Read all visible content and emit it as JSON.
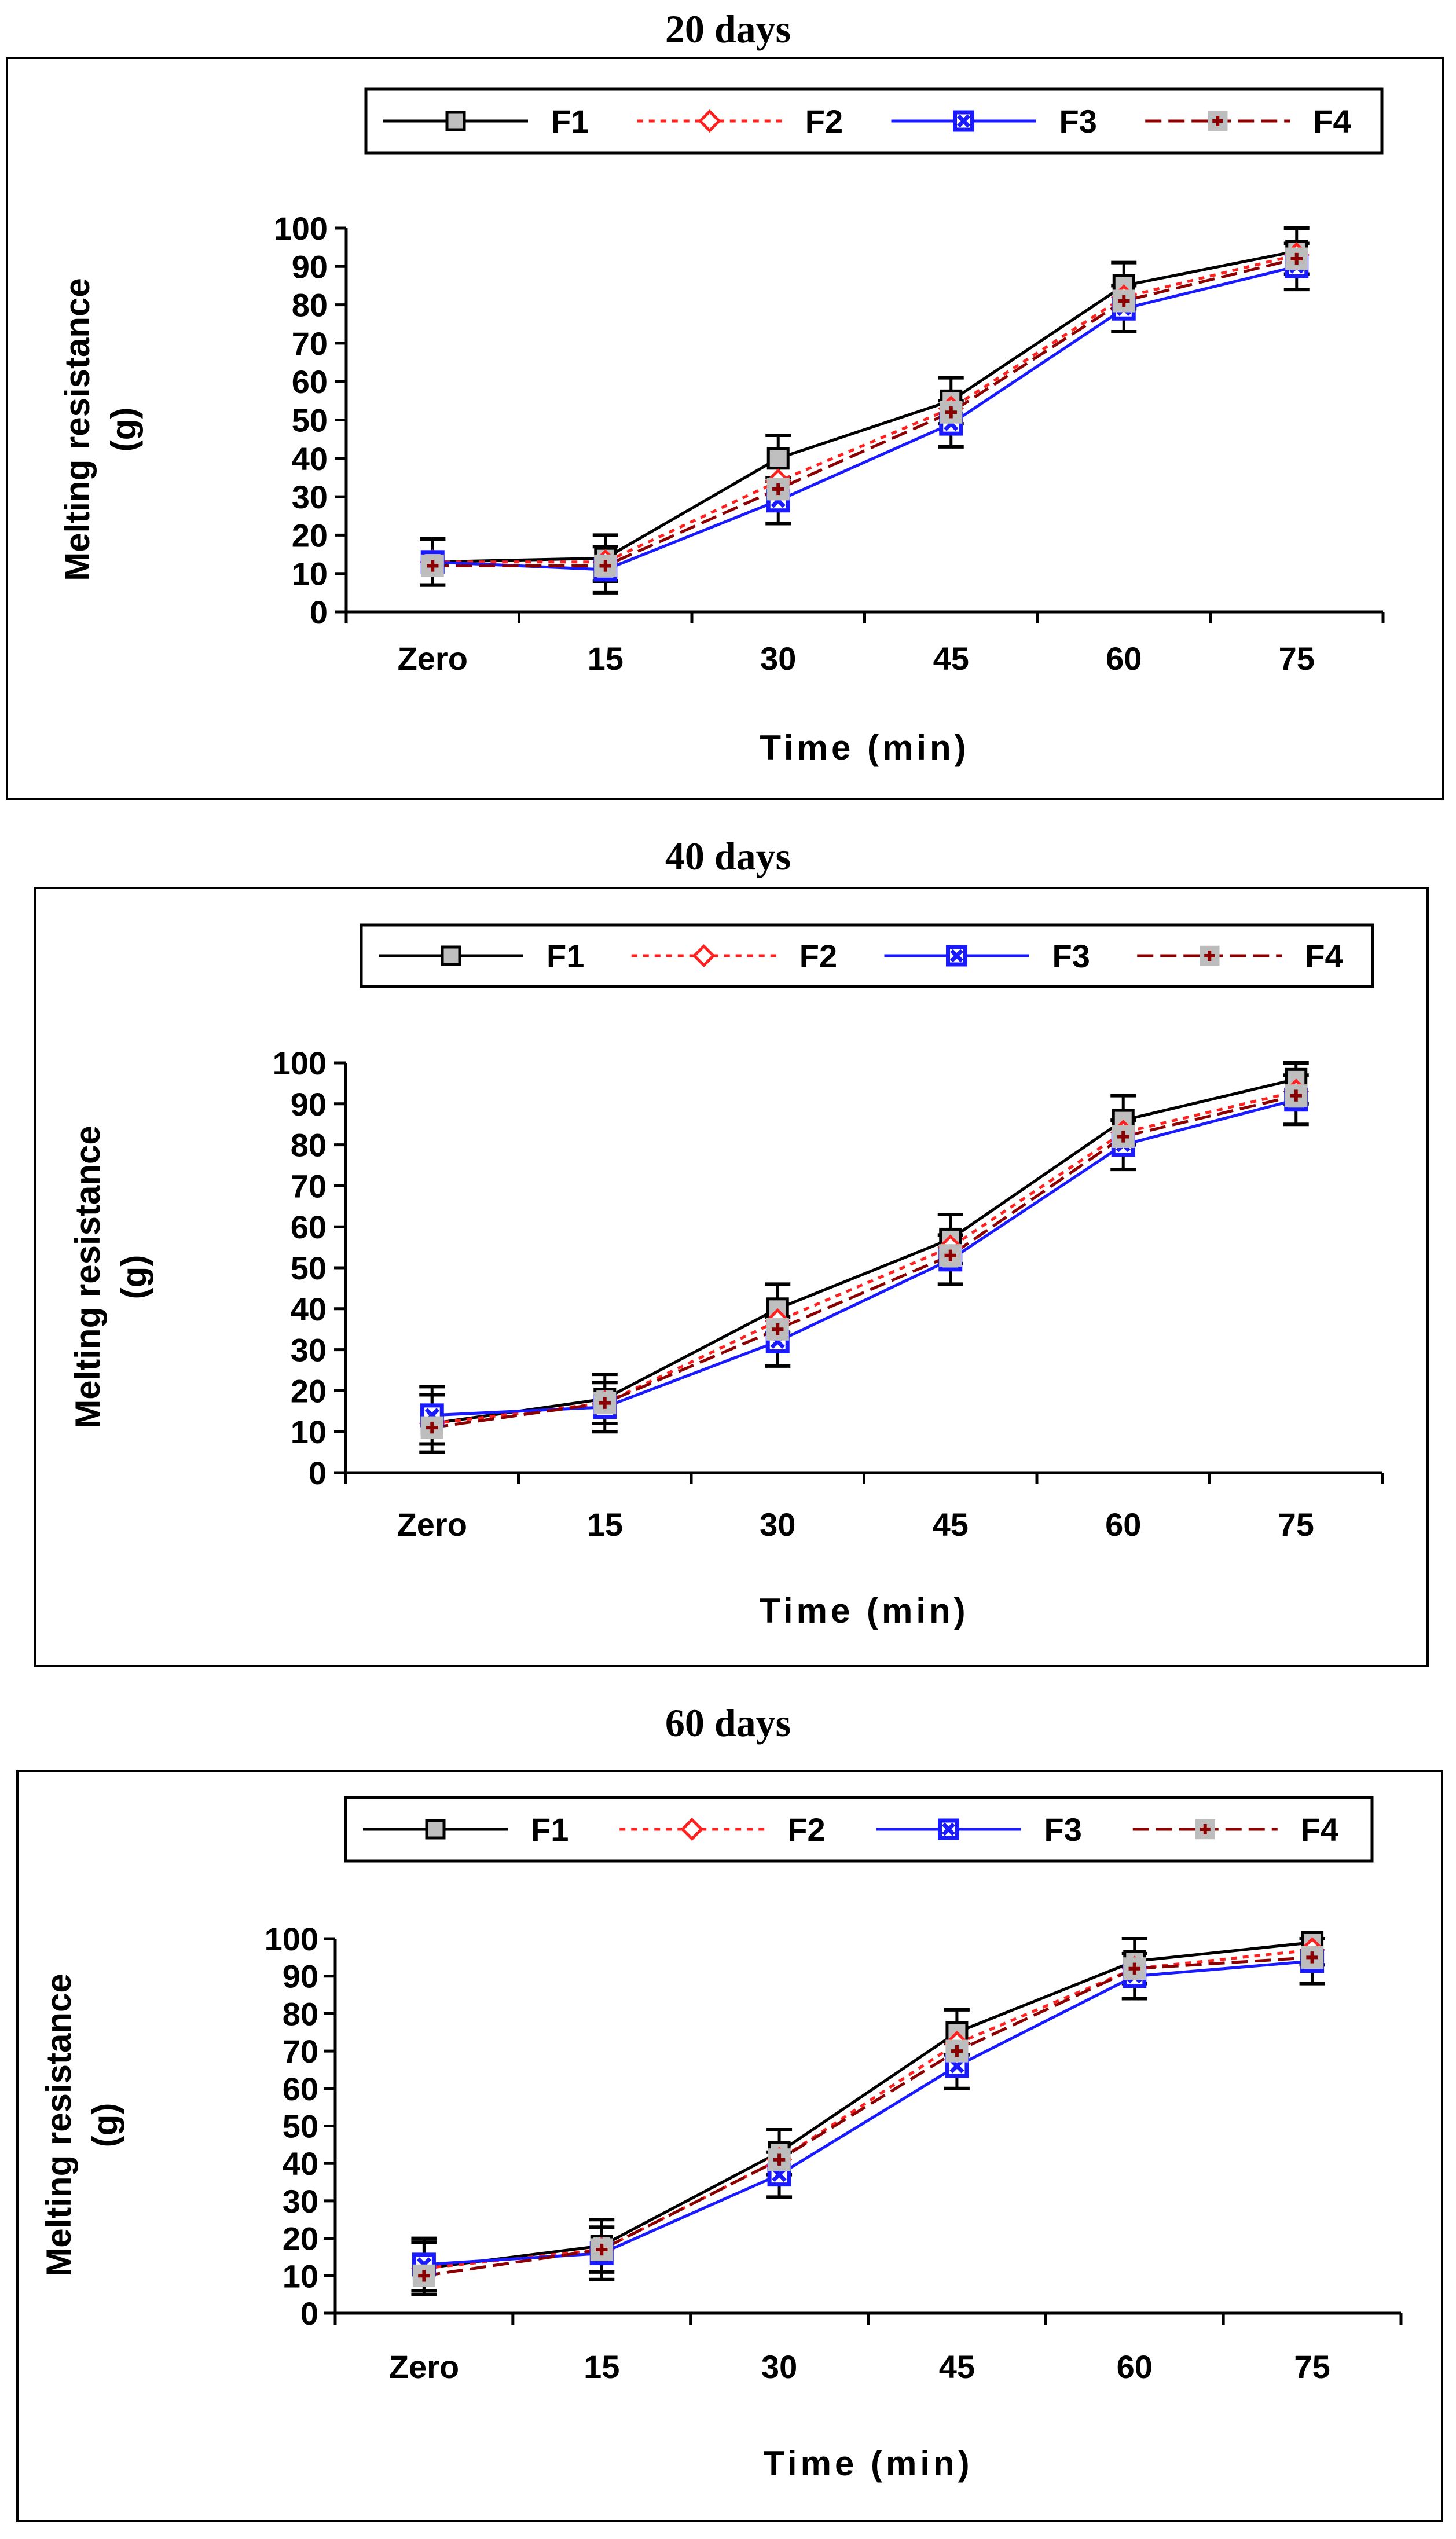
{
  "chart_data": [
    {
      "type": "line",
      "title": "20 days",
      "xlabel": "Time (min)",
      "ylabel_lines": [
        "Melting resistance",
        "(g)"
      ],
      "categories": [
        "Zero",
        "15",
        "30",
        "45",
        "60",
        "75"
      ],
      "ylim": [
        0,
        100
      ],
      "yticks": [
        "0",
        "10",
        "20",
        "30",
        "40",
        "50",
        "60",
        "70",
        "80",
        "90",
        "100"
      ],
      "series": [
        {
          "name": "F1",
          "values": [
            13,
            14,
            40,
            55,
            85,
            94
          ],
          "errors": [
            6,
            6,
            6,
            6,
            6,
            6
          ]
        },
        {
          "name": "F2",
          "values": [
            13,
            13,
            34,
            53,
            82,
            93
          ],
          "errors": [
            6,
            6,
            6,
            6,
            6,
            6
          ]
        },
        {
          "name": "F3",
          "values": [
            13,
            11,
            29,
            49,
            79,
            90
          ],
          "errors": [
            6,
            6,
            6,
            6,
            6,
            6
          ]
        },
        {
          "name": "F4",
          "values": [
            12,
            12,
            32,
            52,
            81,
            92
          ],
          "errors": [
            6,
            6,
            6,
            6,
            6,
            6
          ]
        }
      ]
    },
    {
      "type": "line",
      "title": "40 days",
      "xlabel": "Time (min)",
      "ylabel_lines": [
        "Melting resistance",
        "(g)"
      ],
      "categories": [
        "Zero",
        "15",
        "30",
        "45",
        "60",
        "75"
      ],
      "ylim": [
        0,
        100
      ],
      "yticks": [
        "0",
        "10",
        "20",
        "30",
        "40",
        "50",
        "60",
        "70",
        "80",
        "90",
        "100"
      ],
      "series": [
        {
          "name": "F1",
          "values": [
            12,
            18,
            40,
            57,
            86,
            96
          ],
          "errors": [
            7,
            6,
            6,
            6,
            6,
            6
          ]
        },
        {
          "name": "F2",
          "values": [
            12,
            17,
            37,
            55,
            83,
            93
          ],
          "errors": [
            7,
            6,
            6,
            6,
            6,
            6
          ]
        },
        {
          "name": "F3",
          "values": [
            14,
            16,
            32,
            52,
            80,
            91
          ],
          "errors": [
            7,
            6,
            6,
            6,
            6,
            6
          ]
        },
        {
          "name": "F4",
          "values": [
            11,
            17,
            35,
            53,
            82,
            92
          ],
          "errors": [
            7,
            6,
            6,
            6,
            6,
            6
          ]
        }
      ]
    },
    {
      "type": "line",
      "title": "60 days",
      "xlabel": "Time (min)",
      "ylabel_lines": [
        "Melting resistance",
        "(g)"
      ],
      "categories": [
        "Zero",
        "15",
        "30",
        "45",
        "60",
        "75"
      ],
      "ylim": [
        0,
        100
      ],
      "yticks": [
        "0",
        "10",
        "20",
        "30",
        "40",
        "50",
        "60",
        "70",
        "80",
        "90",
        "100"
      ],
      "series": [
        {
          "name": "F1",
          "values": [
            12,
            18,
            43,
            75,
            94,
            99
          ],
          "errors": [
            7,
            7,
            6,
            6,
            6,
            6
          ]
        },
        {
          "name": "F2",
          "values": [
            12,
            17,
            41,
            72,
            92,
            97
          ],
          "errors": [
            7,
            7,
            6,
            6,
            6,
            6
          ]
        },
        {
          "name": "F3",
          "values": [
            13,
            16,
            37,
            66,
            90,
            94
          ],
          "errors": [
            7,
            7,
            6,
            6,
            6,
            6
          ]
        },
        {
          "name": "F4",
          "values": [
            10,
            17,
            41,
            70,
            92,
            95
          ],
          "errors": [
            8,
            8,
            6,
            6,
            6,
            6
          ]
        }
      ]
    }
  ],
  "legend_style": {
    "F1": {
      "color": "#000000",
      "dash": "",
      "marker": "square",
      "marker_fill": "#bfbfbf",
      "marker_stroke": "#000000"
    },
    "F2": {
      "color": "#ff2020",
      "dash": "10,10",
      "marker": "diamond",
      "marker_fill": "#ffffff",
      "marker_stroke": "#ff2020"
    },
    "F3": {
      "color": "#1a1aff",
      "dash": "",
      "marker": "x-box",
      "marker_fill": "#ffffff",
      "marker_stroke": "#1a1aff"
    },
    "F4": {
      "color": "#8b0000",
      "dash": "28,12",
      "marker": "plus-box",
      "marker_fill": "#bdbdbd",
      "marker_stroke": "#8b0000"
    }
  }
}
